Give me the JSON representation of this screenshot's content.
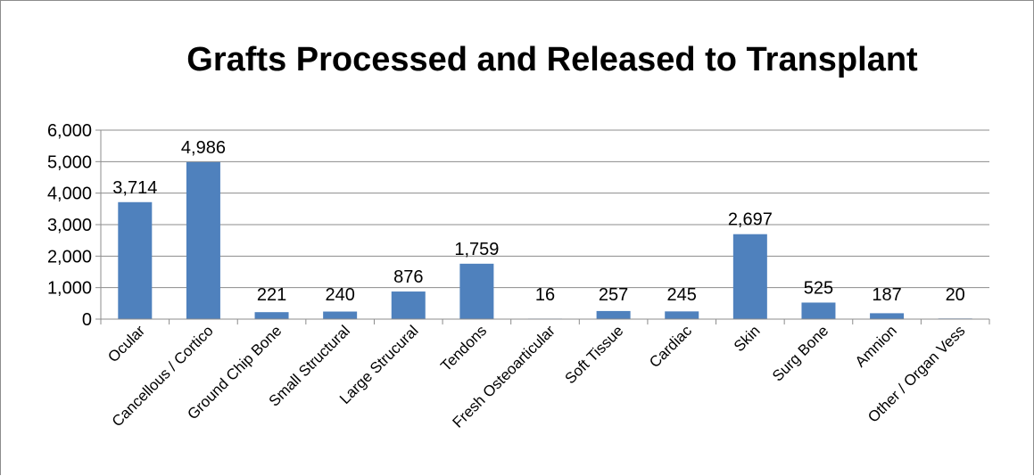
{
  "chart_data": {
    "type": "bar",
    "title": "Grafts Processed and Released to Transplant",
    "xlabel": "",
    "ylabel": "",
    "ylim": [
      0,
      6000
    ],
    "yticks": [
      "0",
      "1,000",
      "2,000",
      "3,000",
      "4,000",
      "5,000",
      "6,000"
    ],
    "ytick_values": [
      0,
      1000,
      2000,
      3000,
      4000,
      5000,
      6000
    ],
    "grid": true,
    "legend": "none",
    "bar_color": "#4f81bd",
    "categories": [
      "Ocular",
      "Cancellous / Cortico",
      "Ground Chip Bone",
      "Small Structural",
      "Large Strucural",
      "Tendons",
      "Fresh Osteoarticular",
      "Soft Tissue",
      "Cardiac",
      "Skin",
      "Surg Bone",
      "Amnion",
      "Other / Organ Vess"
    ],
    "values": [
      3714,
      4986,
      221,
      240,
      876,
      1759,
      16,
      257,
      245,
      2697,
      525,
      187,
      20
    ],
    "data_labels": [
      "3,714",
      "4,986",
      "221",
      "240",
      "876",
      "1,759",
      "16",
      "257",
      "245",
      "2,697",
      "525",
      "187",
      "20"
    ]
  }
}
